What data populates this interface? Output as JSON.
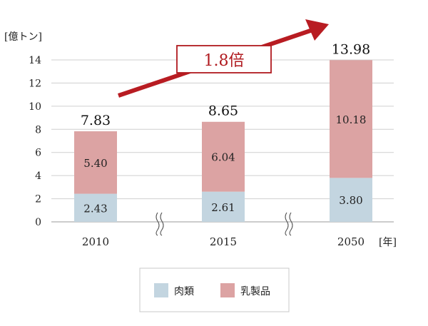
{
  "chart_data": {
    "type": "bar",
    "stacked": true,
    "categories": [
      "2010",
      "2015",
      "2050"
    ],
    "series": [
      {
        "name": "肉類",
        "values": [
          2.43,
          2.61,
          3.8
        ],
        "color": "#c3d5e0"
      },
      {
        "name": "乳製品",
        "values": [
          5.4,
          6.04,
          10.18
        ],
        "color": "#dca3a3"
      }
    ],
    "segment_labels": [
      [
        "2.43",
        "2.61",
        "3.80"
      ],
      [
        "5.40",
        "6.04",
        "10.18"
      ]
    ],
    "totals": [
      "7.83",
      "8.65",
      "13.98"
    ],
    "yticks": [
      "0",
      "2",
      "4",
      "6",
      "8",
      "10",
      "12",
      "14"
    ],
    "ylim": [
      0,
      14
    ],
    "ylabel": "[億トン]",
    "xunit": "[年]",
    "grid": true,
    "legend_position": "bottom",
    "axis_break_marks": true,
    "annotation": {
      "text": "1.8倍",
      "color": "#b01a1f"
    }
  }
}
